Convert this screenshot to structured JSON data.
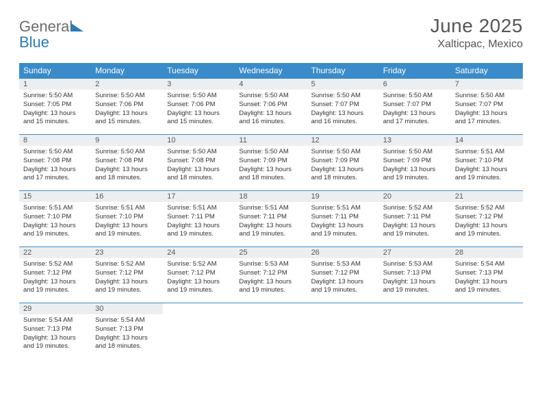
{
  "logo": {
    "text1": "General",
    "text2": "Blue"
  },
  "title": {
    "month": "June 2025",
    "location": "Xalticpac, Mexico"
  },
  "colors": {
    "header_bg": "#3a8bc9",
    "header_text": "#ffffff",
    "daynum_bg": "#eceff1",
    "cell_border": "#3a8bc9",
    "logo_gray": "#6b6b6b",
    "logo_blue": "#2a7ab8"
  },
  "weekdays": [
    "Sunday",
    "Monday",
    "Tuesday",
    "Wednesday",
    "Thursday",
    "Friday",
    "Saturday"
  ],
  "start_offset": 0,
  "days": [
    {
      "n": 1,
      "rise": "5:50 AM",
      "set": "7:05 PM",
      "dl": "13 hours and 15 minutes."
    },
    {
      "n": 2,
      "rise": "5:50 AM",
      "set": "7:06 PM",
      "dl": "13 hours and 15 minutes."
    },
    {
      "n": 3,
      "rise": "5:50 AM",
      "set": "7:06 PM",
      "dl": "13 hours and 15 minutes."
    },
    {
      "n": 4,
      "rise": "5:50 AM",
      "set": "7:06 PM",
      "dl": "13 hours and 16 minutes."
    },
    {
      "n": 5,
      "rise": "5:50 AM",
      "set": "7:07 PM",
      "dl": "13 hours and 16 minutes."
    },
    {
      "n": 6,
      "rise": "5:50 AM",
      "set": "7:07 PM",
      "dl": "13 hours and 17 minutes."
    },
    {
      "n": 7,
      "rise": "5:50 AM",
      "set": "7:07 PM",
      "dl": "13 hours and 17 minutes."
    },
    {
      "n": 8,
      "rise": "5:50 AM",
      "set": "7:08 PM",
      "dl": "13 hours and 17 minutes."
    },
    {
      "n": 9,
      "rise": "5:50 AM",
      "set": "7:08 PM",
      "dl": "13 hours and 18 minutes."
    },
    {
      "n": 10,
      "rise": "5:50 AM",
      "set": "7:08 PM",
      "dl": "13 hours and 18 minutes."
    },
    {
      "n": 11,
      "rise": "5:50 AM",
      "set": "7:09 PM",
      "dl": "13 hours and 18 minutes."
    },
    {
      "n": 12,
      "rise": "5:50 AM",
      "set": "7:09 PM",
      "dl": "13 hours and 18 minutes."
    },
    {
      "n": 13,
      "rise": "5:50 AM",
      "set": "7:09 PM",
      "dl": "13 hours and 19 minutes."
    },
    {
      "n": 14,
      "rise": "5:51 AM",
      "set": "7:10 PM",
      "dl": "13 hours and 19 minutes."
    },
    {
      "n": 15,
      "rise": "5:51 AM",
      "set": "7:10 PM",
      "dl": "13 hours and 19 minutes."
    },
    {
      "n": 16,
      "rise": "5:51 AM",
      "set": "7:10 PM",
      "dl": "13 hours and 19 minutes."
    },
    {
      "n": 17,
      "rise": "5:51 AM",
      "set": "7:11 PM",
      "dl": "13 hours and 19 minutes."
    },
    {
      "n": 18,
      "rise": "5:51 AM",
      "set": "7:11 PM",
      "dl": "13 hours and 19 minutes."
    },
    {
      "n": 19,
      "rise": "5:51 AM",
      "set": "7:11 PM",
      "dl": "13 hours and 19 minutes."
    },
    {
      "n": 20,
      "rise": "5:52 AM",
      "set": "7:11 PM",
      "dl": "13 hours and 19 minutes."
    },
    {
      "n": 21,
      "rise": "5:52 AM",
      "set": "7:12 PM",
      "dl": "13 hours and 19 minutes."
    },
    {
      "n": 22,
      "rise": "5:52 AM",
      "set": "7:12 PM",
      "dl": "13 hours and 19 minutes."
    },
    {
      "n": 23,
      "rise": "5:52 AM",
      "set": "7:12 PM",
      "dl": "13 hours and 19 minutes."
    },
    {
      "n": 24,
      "rise": "5:52 AM",
      "set": "7:12 PM",
      "dl": "13 hours and 19 minutes."
    },
    {
      "n": 25,
      "rise": "5:53 AM",
      "set": "7:12 PM",
      "dl": "13 hours and 19 minutes."
    },
    {
      "n": 26,
      "rise": "5:53 AM",
      "set": "7:12 PM",
      "dl": "13 hours and 19 minutes."
    },
    {
      "n": 27,
      "rise": "5:53 AM",
      "set": "7:13 PM",
      "dl": "13 hours and 19 minutes."
    },
    {
      "n": 28,
      "rise": "5:54 AM",
      "set": "7:13 PM",
      "dl": "13 hours and 19 minutes."
    },
    {
      "n": 29,
      "rise": "5:54 AM",
      "set": "7:13 PM",
      "dl": "13 hours and 19 minutes."
    },
    {
      "n": 30,
      "rise": "5:54 AM",
      "set": "7:13 PM",
      "dl": "13 hours and 18 minutes."
    }
  ],
  "labels": {
    "sunrise": "Sunrise:",
    "sunset": "Sunset:",
    "daylight": "Daylight:"
  }
}
